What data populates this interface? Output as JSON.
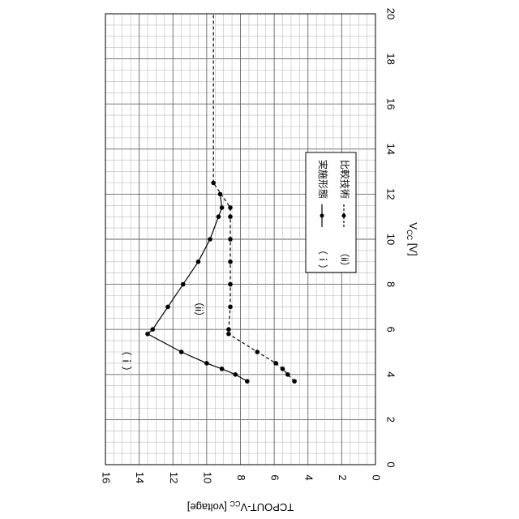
{
  "chart_data": {
    "type": "line",
    "orientation": "rotated-90-ccw",
    "xlabel": "V",
    "xlabel_sub": "CC",
    "xlabel_unit": " [V]",
    "ylabel_pre": "TCPOUT-V",
    "ylabel_sub": "CC",
    "ylabel_unit": " [voltage]",
    "xlim": [
      0,
      20
    ],
    "ylim": [
      0,
      16
    ],
    "xticks": [
      0,
      2,
      4,
      6,
      8,
      10,
      12,
      14,
      16,
      18,
      20
    ],
    "yticks": [
      0,
      2,
      4,
      6,
      8,
      10,
      12,
      14,
      16
    ],
    "grid": true,
    "legend_position": "right-middle",
    "series": [
      {
        "name": "（ｉ）",
        "legend_label": "実施形態",
        "style": "solid",
        "x": [
          3.7,
          4.0,
          4.25,
          4.5,
          5.0,
          5.8,
          6.0,
          7.0,
          8.0,
          9.0,
          10.0,
          11.0,
          11.4,
          12.0
        ],
        "y": [
          7.6,
          8.3,
          9.1,
          10.0,
          11.5,
          13.5,
          13.2,
          12.3,
          11.4,
          10.5,
          9.8,
          9.3,
          9.1,
          9.2
        ]
      },
      {
        "name": "（ii）",
        "legend_label": "比較技術",
        "style": "dashed",
        "x": [
          3.7,
          4.0,
          4.25,
          4.5,
          5.0,
          5.8,
          6.0,
          7.0,
          8.0,
          9.0,
          10.0,
          11.0,
          11.4,
          12.5
        ],
        "y": [
          4.8,
          5.2,
          5.5,
          5.9,
          7.0,
          8.7,
          8.7,
          8.6,
          8.6,
          8.6,
          8.6,
          8.6,
          8.6,
          9.6
        ]
      },
      {
        "name": "",
        "legend_label": "",
        "style": "dashed-flat",
        "x": [
          12.5,
          20.0
        ],
        "y": [
          9.6,
          9.6
        ]
      }
    ],
    "annotations": [
      {
        "text": "（ｉ）",
        "x": 4.6,
        "y": 14.8
      },
      {
        "text": "（ii）",
        "x": 6.9,
        "y": 10.5
      }
    ]
  }
}
